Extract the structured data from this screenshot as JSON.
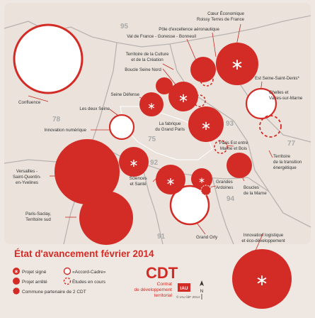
{
  "legend": {
    "title": "État d'avancement février 2014",
    "signed": "Projet signé",
    "accord": "«Accord-Cadre»",
    "stopped": "Projet arrêté",
    "studies": "Études en cours",
    "partner": "Commune partenaire de 2 CDT"
  },
  "cdt": {
    "abbr": "CDT",
    "line1": "Contrat",
    "line2": "de développement",
    "line3": "territorial"
  },
  "logo": {
    "text": "IAU",
    "credit": "© IAU ÎdF 2014"
  },
  "north": "N",
  "departments": {
    "d95": "95",
    "d78": "78",
    "d93": "93",
    "d75": "75",
    "d92": "92",
    "d77": "77",
    "d94": "94",
    "d91": "91"
  },
  "territories": {
    "coeur_eco_1": "Cœur Économique",
    "coeur_eco_2": "Roissy Terres de France",
    "pole_aero": "Pôle d'excellence aéronautique",
    "val_de_france": "Val de France - Gonesse - Bonneuil",
    "culture_1": "Territoire de la Culture",
    "culture_2": "et de la Création",
    "boucle_nord": "Boucle Seine Nord",
    "confluence": "Confluence",
    "est_seine": "Est Seine-Saint-Denis*",
    "seine_defense": "Seine Défense",
    "deux_seine": "Les deux Seine",
    "chelles_1": "Chelles et",
    "chelles_2": "Vaires-sur-Marne",
    "fabrique_1": "La fabrique",
    "fabrique_2": "du Grand Paris",
    "innovation_num": "Innovation numérique",
    "paris_est_1": "Paris Est entre",
    "paris_est_2": "Marne et Bois",
    "transition_1": "Territoire",
    "transition_2": "de la transition",
    "transition_3": "énergétique",
    "versailles_1": "Versailles -",
    "versailles_2": "Saint-Quentin-",
    "versailles_3": "en-Yvelines",
    "sciences_1": "Sciences",
    "sciences_2": "et Santé",
    "grandes_1": "Grandes",
    "grandes_2": "Ardoines",
    "boucles_1": "Boucles",
    "boucles_2": "de la Marne",
    "saclay_1": "Paris-Saclay,",
    "saclay_2": "Territoire sud",
    "grand_orly": "Grand Orly",
    "logistique_1": "Innovation logistique",
    "logistique_2": "et éco-développement"
  },
  "colors": {
    "background": "#efe7e1",
    "red": "#d32b25",
    "boundary": "#b9b3b0"
  }
}
